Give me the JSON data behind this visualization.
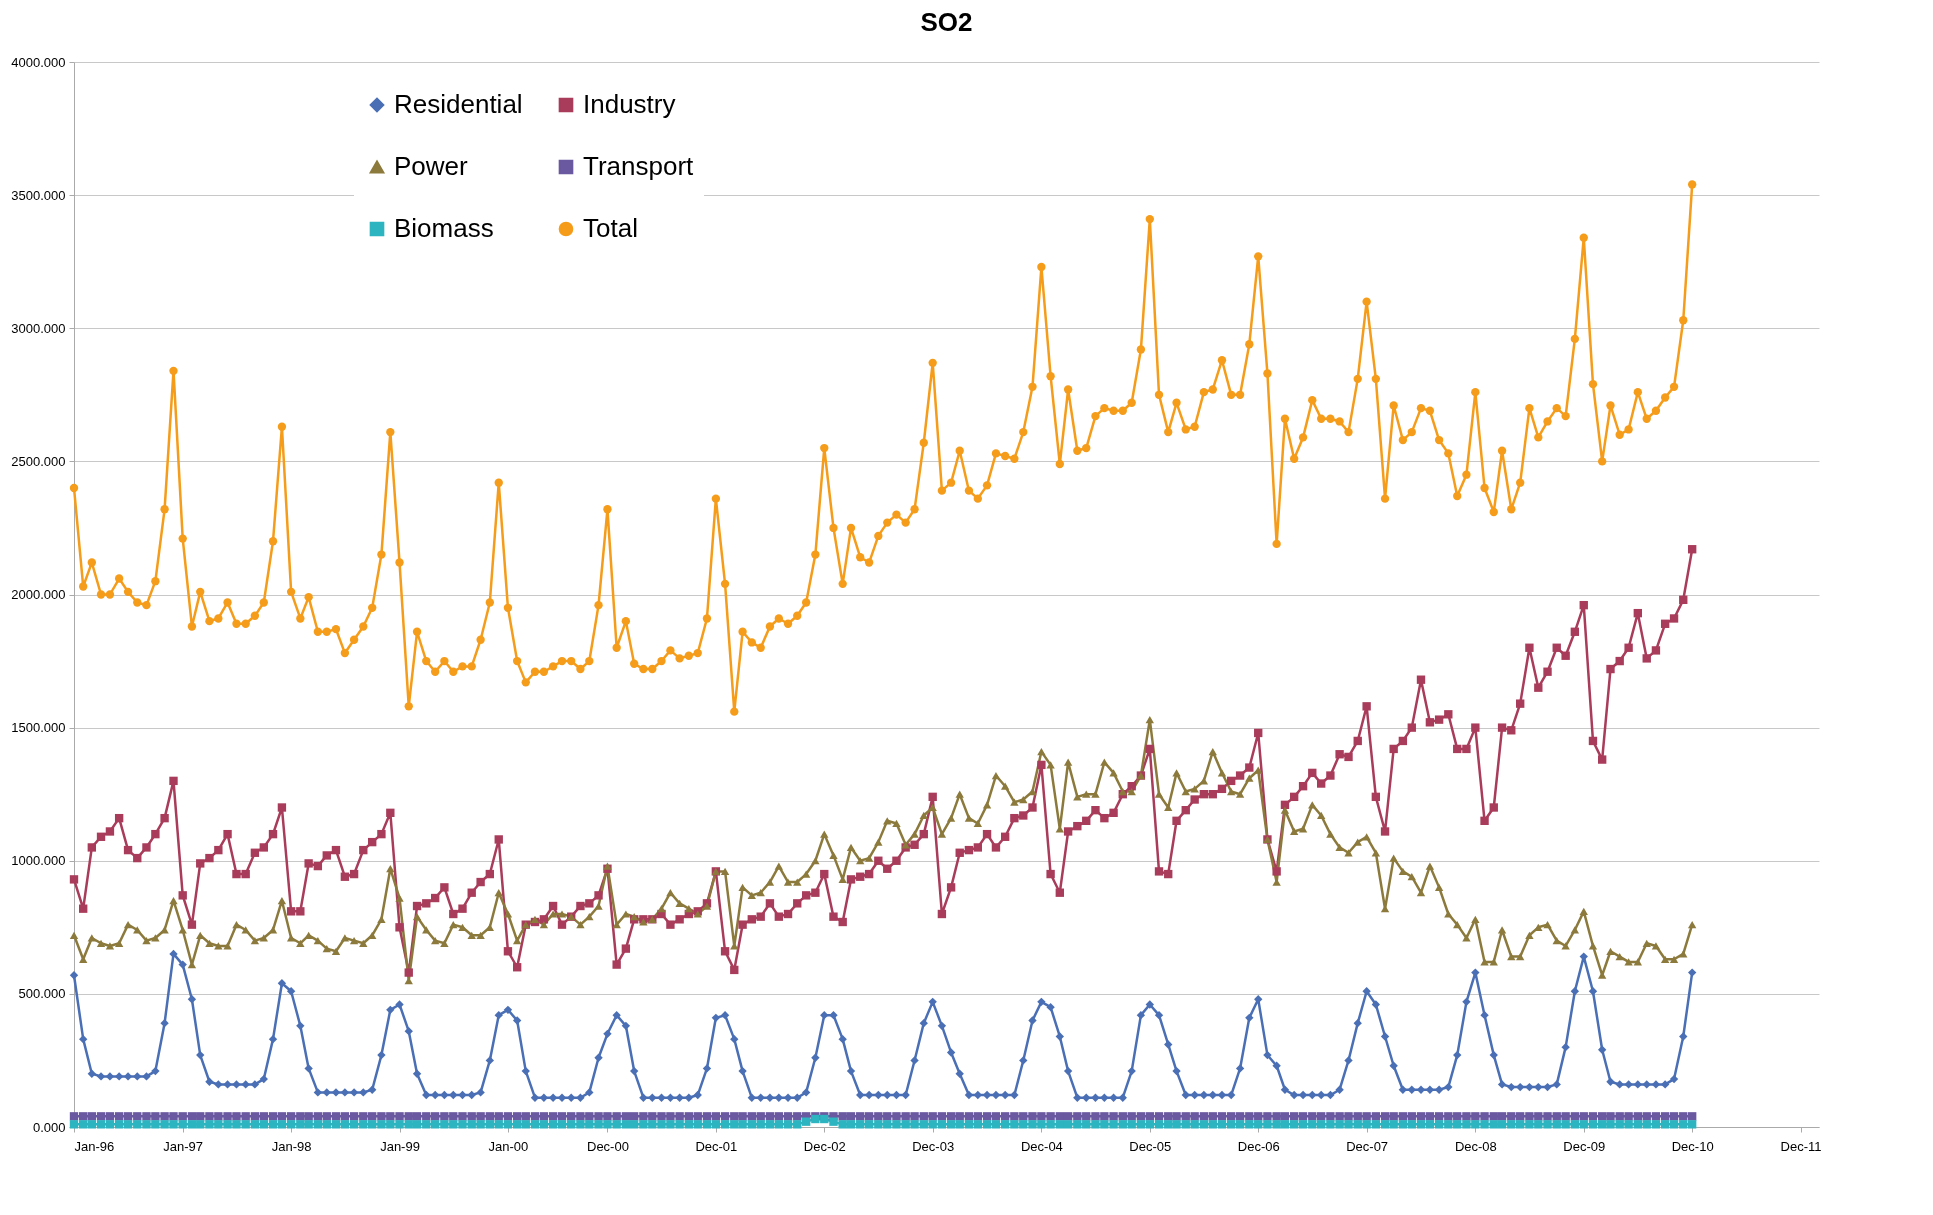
{
  "chart_data": {
    "type": "line",
    "title": "SO2",
    "legend": "top left",
    "grid": "y",
    "xlim": [
      "1996-01",
      "2012-02"
    ],
    "xticks": [
      {
        "value": "1996-01",
        "label": "Jan-96"
      },
      {
        "value": "1997-01",
        "label": "Jan-97"
      },
      {
        "value": "1998-01",
        "label": "Jan-98"
      },
      {
        "value": "1999-01",
        "label": "Jan-99"
      },
      {
        "value": "2000-01",
        "label": "Jan-00"
      },
      {
        "value": "2000-12",
        "label": "Dec-00"
      },
      {
        "value": "2001-12",
        "label": "Dec-01"
      },
      {
        "value": "2002-12",
        "label": "Dec-02"
      },
      {
        "value": "2003-12",
        "label": "Dec-03"
      },
      {
        "value": "2004-12",
        "label": "Dec-04"
      },
      {
        "value": "2005-12",
        "label": "Dec-05"
      },
      {
        "value": "2006-12",
        "label": "Dec-06"
      },
      {
        "value": "2007-12",
        "label": "Dec-07"
      },
      {
        "value": "2008-12",
        "label": "Dec-08"
      },
      {
        "value": "2009-12",
        "label": "Dec-09"
      },
      {
        "value": "2010-12",
        "label": "Dec-10"
      },
      {
        "value": "2011-12",
        "label": "Dec-11"
      }
    ],
    "ylim": [
      0,
      4000
    ],
    "yticks": [
      {
        "value": 0,
        "label": "0.000"
      },
      {
        "value": 500,
        "label": "500.000"
      },
      {
        "value": 1000,
        "label": "1000.000"
      },
      {
        "value": 1500,
        "label": "1500.000"
      },
      {
        "value": 2000,
        "label": "2000.000"
      },
      {
        "value": 2500,
        "label": "2500.000"
      },
      {
        "value": 3000,
        "label": "3000.000"
      },
      {
        "value": 3500,
        "label": "3500.000"
      },
      {
        "value": 4000,
        "label": "4000.000"
      }
    ],
    "x": [
      "1996-01",
      "1996-02",
      "1996-03",
      "1996-04",
      "1996-05",
      "1996-06",
      "1996-07",
      "1996-08",
      "1996-09",
      "1996-10",
      "1996-11",
      "1996-12",
      "1997-01",
      "1997-02",
      "1997-03",
      "1997-04",
      "1997-05",
      "1997-06",
      "1997-07",
      "1997-08",
      "1997-09",
      "1997-10",
      "1997-11",
      "1997-12",
      "1998-01",
      "1998-02",
      "1998-03",
      "1998-04",
      "1998-05",
      "1998-06",
      "1998-07",
      "1998-08",
      "1998-09",
      "1998-10",
      "1998-11",
      "1998-12",
      "1999-01",
      "1999-02",
      "1999-03",
      "1999-04",
      "1999-05",
      "1999-06",
      "1999-07",
      "1999-08",
      "1999-09",
      "1999-10",
      "1999-11",
      "1999-12",
      "2000-01",
      "2000-02",
      "2000-03",
      "2000-04",
      "2000-05",
      "2000-06",
      "2000-07",
      "2000-08",
      "2000-09",
      "2000-10",
      "2000-11",
      "2000-12",
      "2001-01",
      "2001-02",
      "2001-03",
      "2001-04",
      "2001-05",
      "2001-06",
      "2001-07",
      "2001-08",
      "2001-09",
      "2001-10",
      "2001-11",
      "2001-12",
      "2002-01",
      "2002-02",
      "2002-03",
      "2002-04",
      "2002-05",
      "2002-06",
      "2002-07",
      "2002-08",
      "2002-09",
      "2002-10",
      "2002-11",
      "2002-12",
      "2003-01",
      "2003-02",
      "2003-03",
      "2003-04",
      "2003-05",
      "2003-06",
      "2003-07",
      "2003-08",
      "2003-09",
      "2003-10",
      "2003-11",
      "2003-12",
      "2004-01",
      "2004-02",
      "2004-03",
      "2004-04",
      "2004-05",
      "2004-06",
      "2004-07",
      "2004-08",
      "2004-09",
      "2004-10",
      "2004-11",
      "2004-12",
      "2005-01",
      "2005-02",
      "2005-03",
      "2005-04",
      "2005-05",
      "2005-06",
      "2005-07",
      "2005-08",
      "2005-09",
      "2005-10",
      "2005-11",
      "2005-12",
      "2006-01",
      "2006-02",
      "2006-03",
      "2006-04",
      "2006-05",
      "2006-06",
      "2006-07",
      "2006-08",
      "2006-09",
      "2006-10",
      "2006-11",
      "2006-12",
      "2007-01",
      "2007-02",
      "2007-03",
      "2007-04",
      "2007-05",
      "2007-06",
      "2007-07",
      "2007-08",
      "2007-09",
      "2007-10",
      "2007-11",
      "2007-12",
      "2008-01",
      "2008-02",
      "2008-03",
      "2008-04",
      "2008-05",
      "2008-06",
      "2008-07",
      "2008-08",
      "2008-09",
      "2008-10",
      "2008-11",
      "2008-12",
      "2009-01",
      "2009-02",
      "2009-03",
      "2009-04",
      "2009-05",
      "2009-06",
      "2009-07",
      "2009-08",
      "2009-09",
      "2009-10",
      "2009-11",
      "2009-12",
      "2010-01",
      "2010-02",
      "2010-03",
      "2010-04",
      "2010-05",
      "2010-06",
      "2010-07",
      "2010-08",
      "2010-09",
      "2010-10",
      "2010-11",
      "2010-12"
    ],
    "series": [
      {
        "name": "Residential",
        "color": "#4a6fb5",
        "marker": "diamond",
        "values": [
          570,
          330,
          200,
          190,
          190,
          190,
          190,
          190,
          190,
          210,
          390,
          650,
          610,
          480,
          270,
          170,
          160,
          160,
          160,
          160,
          160,
          180,
          330,
          540,
          510,
          380,
          220,
          130,
          130,
          130,
          130,
          130,
          130,
          140,
          270,
          440,
          460,
          360,
          200,
          120,
          120,
          120,
          120,
          120,
          120,
          130,
          250,
          420,
          440,
          400,
          210,
          110,
          110,
          110,
          110,
          110,
          110,
          130,
          260,
          350,
          420,
          380,
          210,
          110,
          110,
          110,
          110,
          110,
          110,
          120,
          220,
          410,
          420,
          330,
          210,
          110,
          110,
          110,
          110,
          110,
          110,
          130,
          260,
          420,
          420,
          330,
          210,
          120,
          120,
          120,
          120,
          120,
          120,
          250,
          390,
          470,
          380,
          280,
          200,
          120,
          120,
          120,
          120,
          120,
          120,
          250,
          400,
          470,
          450,
          340,
          210,
          110,
          110,
          110,
          110,
          110,
          110,
          210,
          420,
          460,
          420,
          310,
          210,
          120,
          120,
          120,
          120,
          120,
          120,
          220,
          410,
          480,
          270,
          230,
          140,
          120,
          120,
          120,
          120,
          120,
          140,
          250,
          390,
          510,
          460,
          340,
          230,
          140,
          140,
          140,
          140,
          140,
          150,
          270,
          470,
          580,
          420,
          270,
          160,
          150,
          150,
          150,
          150,
          150,
          160,
          300,
          510,
          640,
          510,
          290,
          170,
          160,
          160,
          160,
          160,
          160,
          160,
          180,
          340,
          580
        ]
      },
      {
        "name": "Industry",
        "color": "#a83c5a",
        "marker": "square",
        "values": [
          930,
          820,
          1050,
          1090,
          1110,
          1160,
          1040,
          1010,
          1050,
          1100,
          1160,
          1300,
          870,
          760,
          990,
          1010,
          1040,
          1100,
          950,
          950,
          1030,
          1050,
          1100,
          1200,
          810,
          810,
          990,
          980,
          1020,
          1040,
          940,
          950,
          1040,
          1070,
          1100,
          1180,
          750,
          580,
          830,
          840,
          860,
          900,
          800,
          820,
          880,
          920,
          950,
          1080,
          660,
          600,
          760,
          770,
          780,
          830,
          760,
          790,
          830,
          840,
          870,
          970,
          610,
          670,
          780,
          780,
          780,
          800,
          760,
          780,
          800,
          810,
          840,
          960,
          660,
          590,
          760,
          780,
          790,
          840,
          790,
          800,
          840,
          870,
          880,
          950,
          790,
          770,
          930,
          940,
          950,
          1000,
          970,
          1000,
          1050,
          1060,
          1100,
          1240,
          800,
          900,
          1030,
          1040,
          1050,
          1100,
          1050,
          1090,
          1160,
          1170,
          1200,
          1360,
          950,
          880,
          1110,
          1130,
          1150,
          1190,
          1160,
          1180,
          1250,
          1280,
          1320,
          1420,
          960,
          950,
          1150,
          1190,
          1230,
          1250,
          1250,
          1270,
          1300,
          1320,
          1350,
          1480,
          1080,
          960,
          1210,
          1240,
          1280,
          1330,
          1290,
          1320,
          1400,
          1390,
          1450,
          1580,
          1240,
          1110,
          1420,
          1450,
          1500,
          1680,
          1520,
          1530,
          1550,
          1420,
          1420,
          1500,
          1150,
          1200,
          1500,
          1490,
          1590,
          1800,
          1650,
          1710,
          1800,
          1770,
          1860,
          1960,
          1450,
          1380,
          1720,
          1750,
          1800,
          1930,
          1760,
          1790,
          1890,
          1910,
          1980,
          2170
        ]
      },
      {
        "name": "Power",
        "color": "#8c7a3c",
        "marker": "triangle",
        "values": [
          720,
          630,
          710,
          690,
          680,
          690,
          760,
          740,
          700,
          710,
          740,
          850,
          740,
          610,
          720,
          690,
          680,
          680,
          760,
          740,
          700,
          710,
          740,
          850,
          710,
          690,
          720,
          700,
          670,
          660,
          710,
          700,
          690,
          720,
          780,
          970,
          860,
          550,
          790,
          740,
          700,
          690,
          760,
          750,
          720,
          720,
          750,
          880,
          800,
          700,
          760,
          780,
          760,
          800,
          800,
          790,
          760,
          790,
          830,
          980,
          760,
          800,
          790,
          770,
          780,
          820,
          880,
          840,
          820,
          800,
          830,
          960,
          960,
          680,
          900,
          870,
          880,
          920,
          980,
          920,
          920,
          950,
          1000,
          1100,
          1020,
          930,
          1050,
          1000,
          1010,
          1070,
          1150,
          1140,
          1060,
          1100,
          1170,
          1200,
          1100,
          1160,
          1250,
          1160,
          1140,
          1210,
          1320,
          1280,
          1220,
          1230,
          1260,
          1410,
          1360,
          1120,
          1370,
          1240,
          1250,
          1250,
          1370,
          1330,
          1260,
          1260,
          1320,
          1530,
          1250,
          1200,
          1330,
          1260,
          1270,
          1300,
          1410,
          1330,
          1260,
          1250,
          1310,
          1340,
          1080,
          920,
          1190,
          1110,
          1120,
          1210,
          1170,
          1100,
          1050,
          1030,
          1070,
          1090,
          1030,
          820,
          1010,
          960,
          940,
          880,
          980,
          900,
          800,
          760,
          710,
          780,
          620,
          620,
          740,
          640,
          640,
          720,
          750,
          760,
          700,
          680,
          740,
          810,
          680,
          570,
          660,
          640,
          620,
          620,
          690,
          680,
          630,
          630,
          650,
          760
        ]
      },
      {
        "name": "Transport",
        "color": "#6a58a0",
        "marker": "square",
        "values": [
          40,
          40,
          40,
          40,
          40,
          40,
          40,
          40,
          40,
          40,
          40,
          40,
          40,
          40,
          40,
          40,
          40,
          40,
          40,
          40,
          40,
          40,
          40,
          40,
          40,
          40,
          40,
          40,
          40,
          40,
          40,
          40,
          40,
          40,
          40,
          40,
          40,
          40,
          40,
          40,
          40,
          40,
          40,
          40,
          40,
          40,
          40,
          40,
          40,
          40,
          40,
          40,
          40,
          40,
          40,
          40,
          40,
          40,
          40,
          40,
          40,
          40,
          40,
          40,
          40,
          40,
          40,
          40,
          40,
          40,
          40,
          40,
          40,
          40,
          40,
          40,
          40,
          40,
          40,
          40,
          40,
          40,
          40,
          40,
          40,
          40,
          40,
          40,
          40,
          40,
          40,
          40,
          40,
          40,
          40,
          40,
          40,
          40,
          40,
          40,
          40,
          40,
          40,
          40,
          40,
          40,
          40,
          40,
          40,
          40,
          40,
          40,
          40,
          40,
          40,
          40,
          40,
          40,
          40,
          40,
          40,
          40,
          40,
          40,
          40,
          40,
          40,
          40,
          40,
          40,
          40,
          40,
          40,
          40,
          40,
          40,
          40,
          40,
          40,
          40,
          40,
          40,
          40,
          40,
          40,
          40,
          40,
          40,
          40,
          40,
          40,
          40,
          40,
          40,
          40,
          40,
          40,
          40,
          40,
          40,
          40,
          40,
          40,
          40,
          40,
          40,
          40,
          40,
          40,
          40,
          40,
          40,
          40,
          40,
          40,
          40,
          40,
          40,
          40,
          40
        ]
      },
      {
        "name": "Biomass",
        "color": "#2cb5c0",
        "marker": "square",
        "values": [
          10,
          10,
          10,
          10,
          10,
          10,
          10,
          10,
          10,
          10,
          10,
          10,
          10,
          10,
          10,
          10,
          10,
          10,
          10,
          10,
          10,
          10,
          10,
          10,
          10,
          10,
          10,
          10,
          10,
          10,
          10,
          10,
          10,
          10,
          10,
          10,
          10,
          10,
          10,
          10,
          10,
          10,
          10,
          10,
          10,
          10,
          10,
          10,
          10,
          10,
          10,
          10,
          10,
          10,
          10,
          10,
          10,
          10,
          10,
          10,
          10,
          10,
          10,
          10,
          10,
          10,
          10,
          10,
          10,
          10,
          10,
          10,
          10,
          10,
          10,
          10,
          10,
          10,
          10,
          10,
          10,
          20,
          30,
          30,
          20,
          10,
          10,
          10,
          10,
          10,
          10,
          10,
          10,
          10,
          10,
          10,
          10,
          10,
          10,
          10,
          10,
          10,
          10,
          10,
          10,
          10,
          10,
          10,
          10,
          10,
          10,
          10,
          10,
          10,
          10,
          10,
          10,
          10,
          10,
          10,
          10,
          10,
          10,
          10,
          10,
          10,
          10,
          10,
          10,
          10,
          10,
          10,
          10,
          10,
          10,
          10,
          10,
          10,
          10,
          10,
          10,
          10,
          10,
          10,
          10,
          10,
          10,
          10,
          10,
          10,
          10,
          10,
          10,
          10,
          10,
          10,
          10,
          10,
          10,
          10,
          10,
          10,
          10,
          10,
          10,
          10,
          10,
          10,
          10,
          10,
          10,
          10,
          10,
          10,
          10,
          10,
          10,
          10,
          10,
          10
        ]
      },
      {
        "name": "Total",
        "color": "#f59c1a",
        "marker": "circle",
        "values": [
          2400,
          2030,
          2120,
          2000,
          2000,
          2060,
          2010,
          1970,
          1960,
          2050,
          2320,
          2840,
          2210,
          1880,
          2010,
          1900,
          1910,
          1970,
          1890,
          1890,
          1920,
          1970,
          2200,
          2630,
          2010,
          1910,
          1990,
          1860,
          1860,
          1870,
          1780,
          1830,
          1880,
          1950,
          2150,
          2610,
          2120,
          1580,
          1860,
          1750,
          1710,
          1750,
          1710,
          1730,
          1730,
          1830,
          1970,
          2420,
          1950,
          1750,
          1670,
          1710,
          1710,
          1730,
          1750,
          1750,
          1720,
          1750,
          1960,
          2320,
          1800,
          1900,
          1740,
          1720,
          1720,
          1750,
          1790,
          1760,
          1770,
          1780,
          1910,
          2360,
          2040,
          1560,
          1860,
          1820,
          1800,
          1880,
          1910,
          1890,
          1920,
          1970,
          2150,
          2550,
          2250,
          2040,
          2250,
          2140,
          2120,
          2220,
          2270,
          2300,
          2270,
          2320,
          2570,
          2870,
          2390,
          2420,
          2540,
          2390,
          2360,
          2410,
          2530,
          2520,
          2510,
          2610,
          2780,
          3230,
          2820,
          2490,
          2770,
          2540,
          2550,
          2670,
          2700,
          2690,
          2690,
          2720,
          2920,
          3410,
          2750,
          2610,
          2720,
          2620,
          2630,
          2760,
          2770,
          2880,
          2750,
          2750,
          2940,
          3270,
          2830,
          2190,
          2660,
          2510,
          2590,
          2730,
          2660,
          2660,
          2650,
          2610,
          2810,
          3100,
          2810,
          2360,
          2710,
          2580,
          2610,
          2700,
          2690,
          2580,
          2530,
          2370,
          2450,
          2760,
          2400,
          2310,
          2540,
          2320,
          2420,
          2700,
          2590,
          2650,
          2700,
          2670,
          2960,
          3340,
          2790,
          2500,
          2710,
          2600,
          2620,
          2760,
          2660,
          2690,
          2740,
          2780,
          3030,
          3540
        ]
      }
    ]
  }
}
